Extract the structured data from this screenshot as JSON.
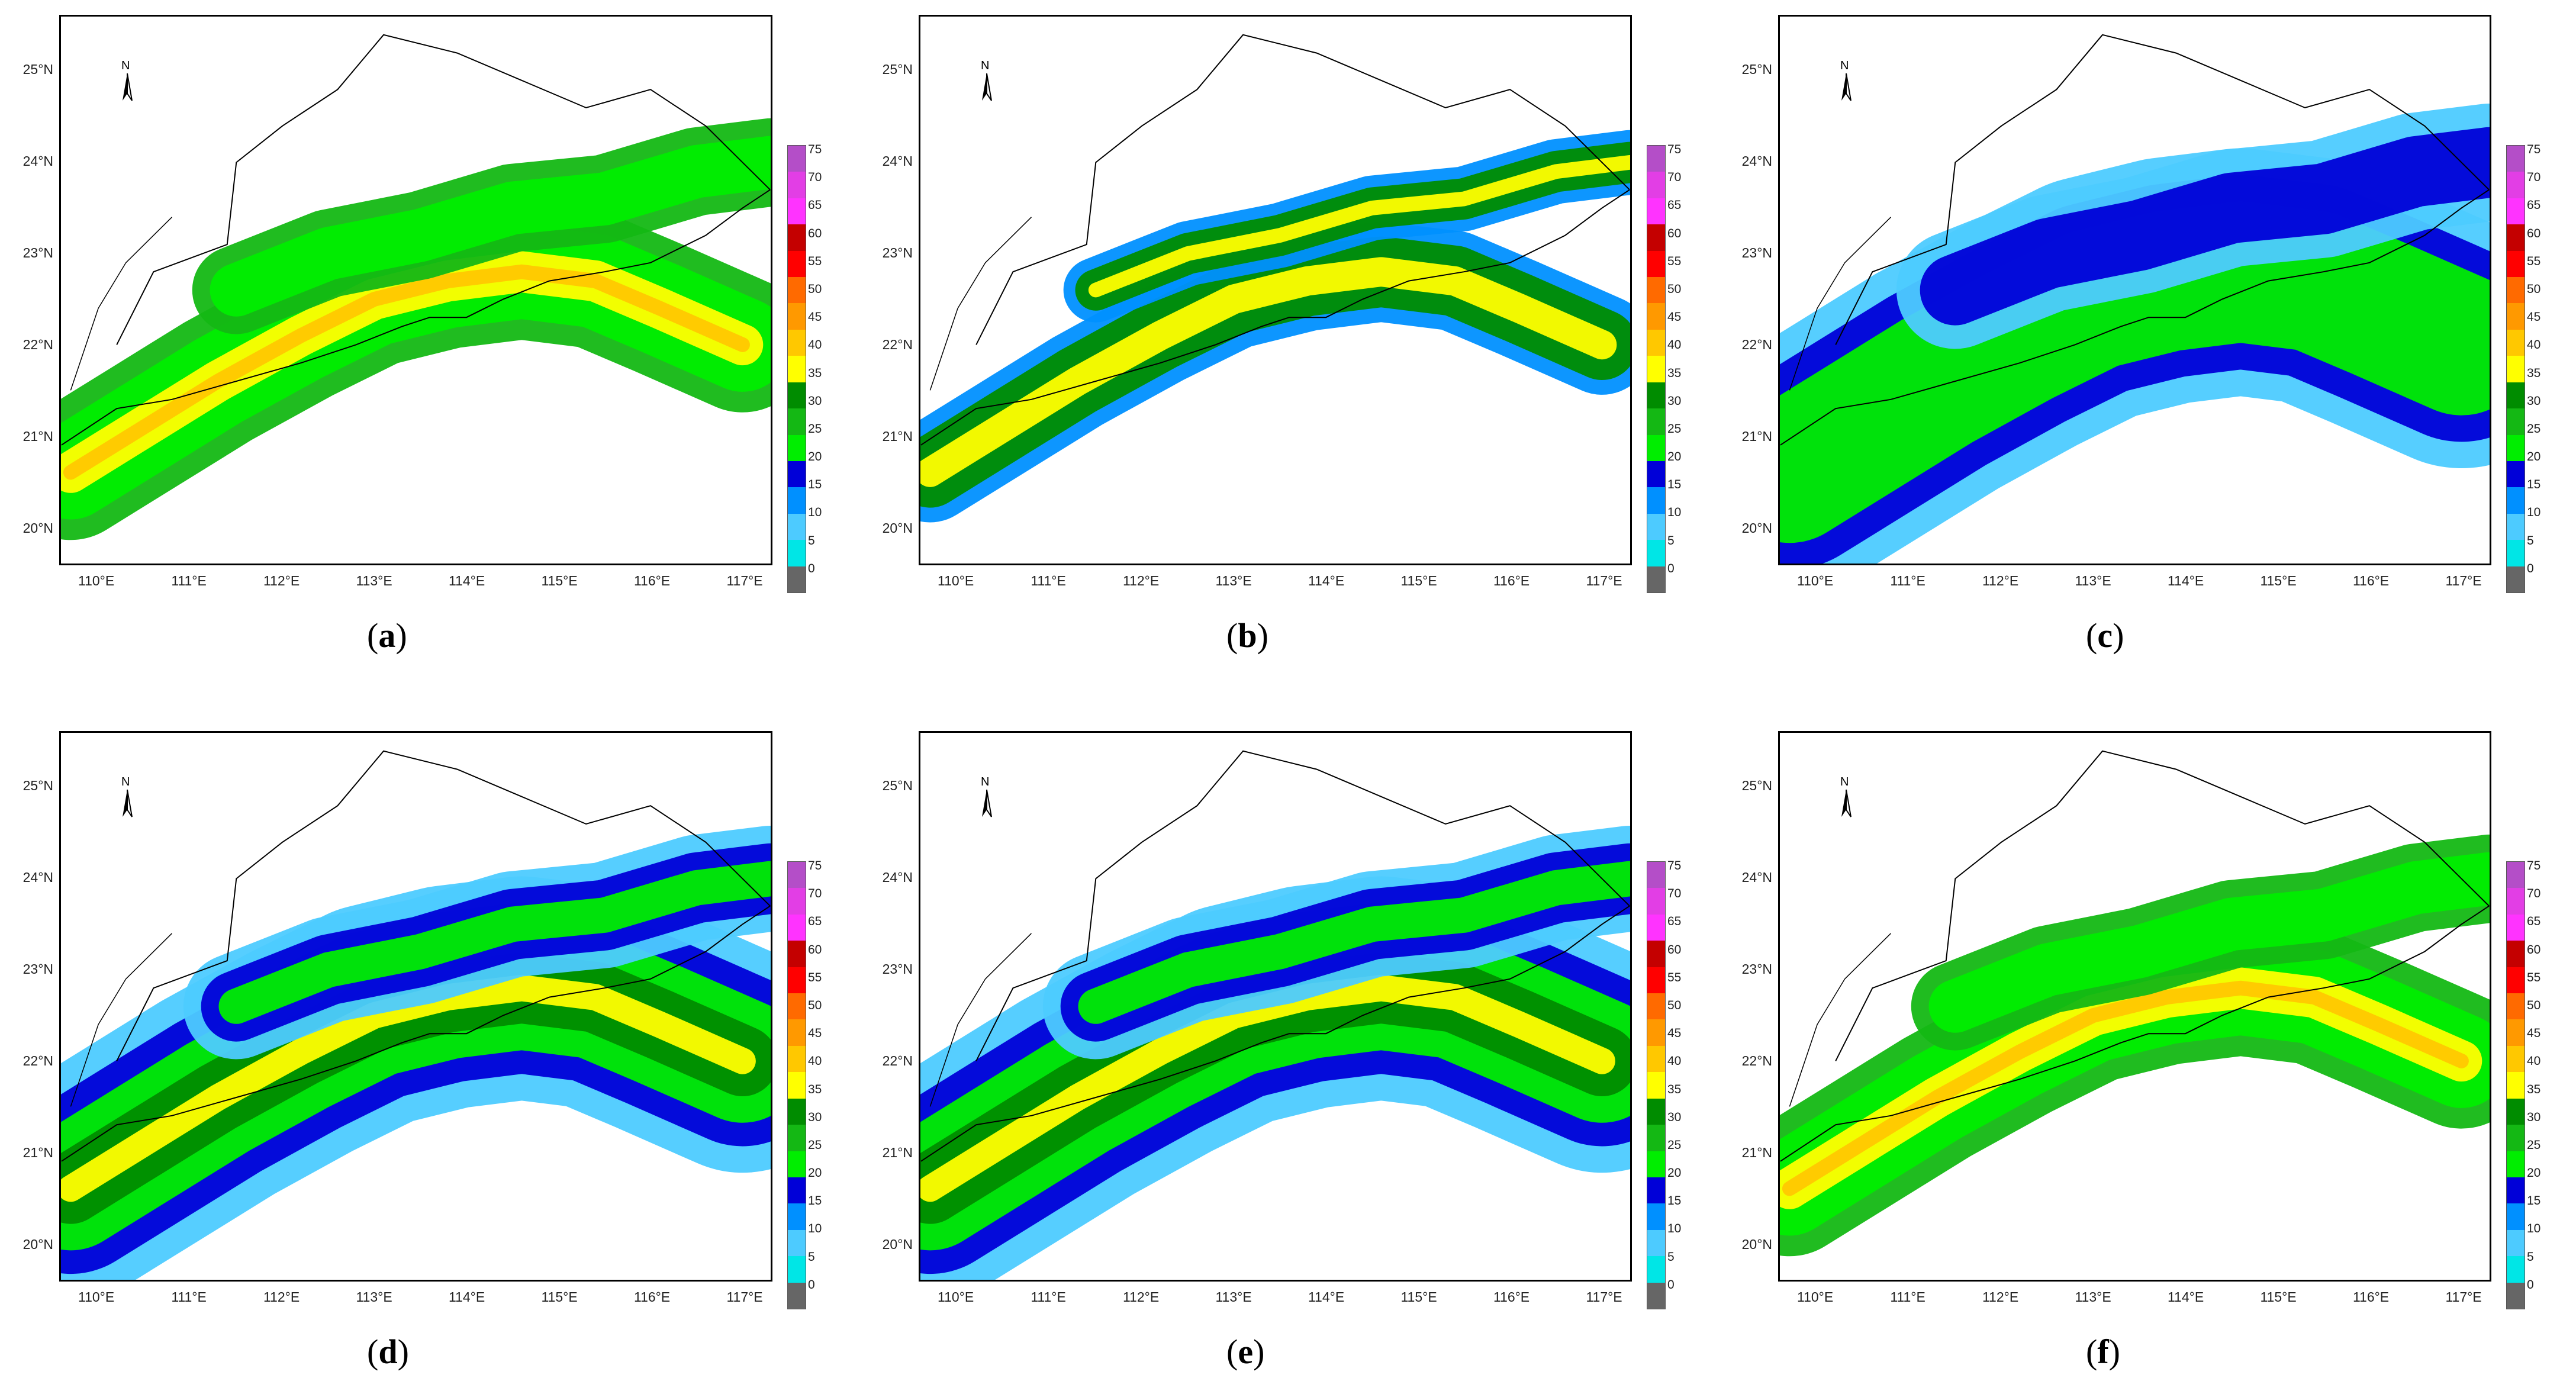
{
  "figure": {
    "panels": [
      {
        "id": "a",
        "caption_letter": "a"
      },
      {
        "id": "b",
        "caption_letter": "b"
      },
      {
        "id": "c",
        "caption_letter": "c"
      },
      {
        "id": "d",
        "caption_letter": "d"
      },
      {
        "id": "e",
        "caption_letter": "e"
      },
      {
        "id": "f",
        "caption_letter": "f"
      }
    ],
    "latitude_labels": [
      "25°N",
      "24°N",
      "23°N",
      "22°N",
      "21°N",
      "20°N"
    ],
    "longitude_labels": [
      "110°E",
      "111°E",
      "112°E",
      "113°E",
      "114°E",
      "115°E",
      "116°E",
      "117°E"
    ],
    "north_arrow_label": "N",
    "colorbar": {
      "labels": [
        "75",
        "70",
        "65",
        "60",
        "55",
        "50",
        "45",
        "40",
        "35",
        "30",
        "25",
        "20",
        "15",
        "10",
        "5",
        "0"
      ],
      "colors": [
        "#b44ec8",
        "#e23ee5",
        "#ff33ff",
        "#c40000",
        "#ff0000",
        "#ff6a00",
        "#ff9900",
        "#ffc800",
        "#ffff00",
        "#008c00",
        "#14b814",
        "#00ee00",
        "#0000d8",
        "#0090ff",
        "#4dcbff",
        "#00e6e6",
        "#666666"
      ]
    }
  }
}
